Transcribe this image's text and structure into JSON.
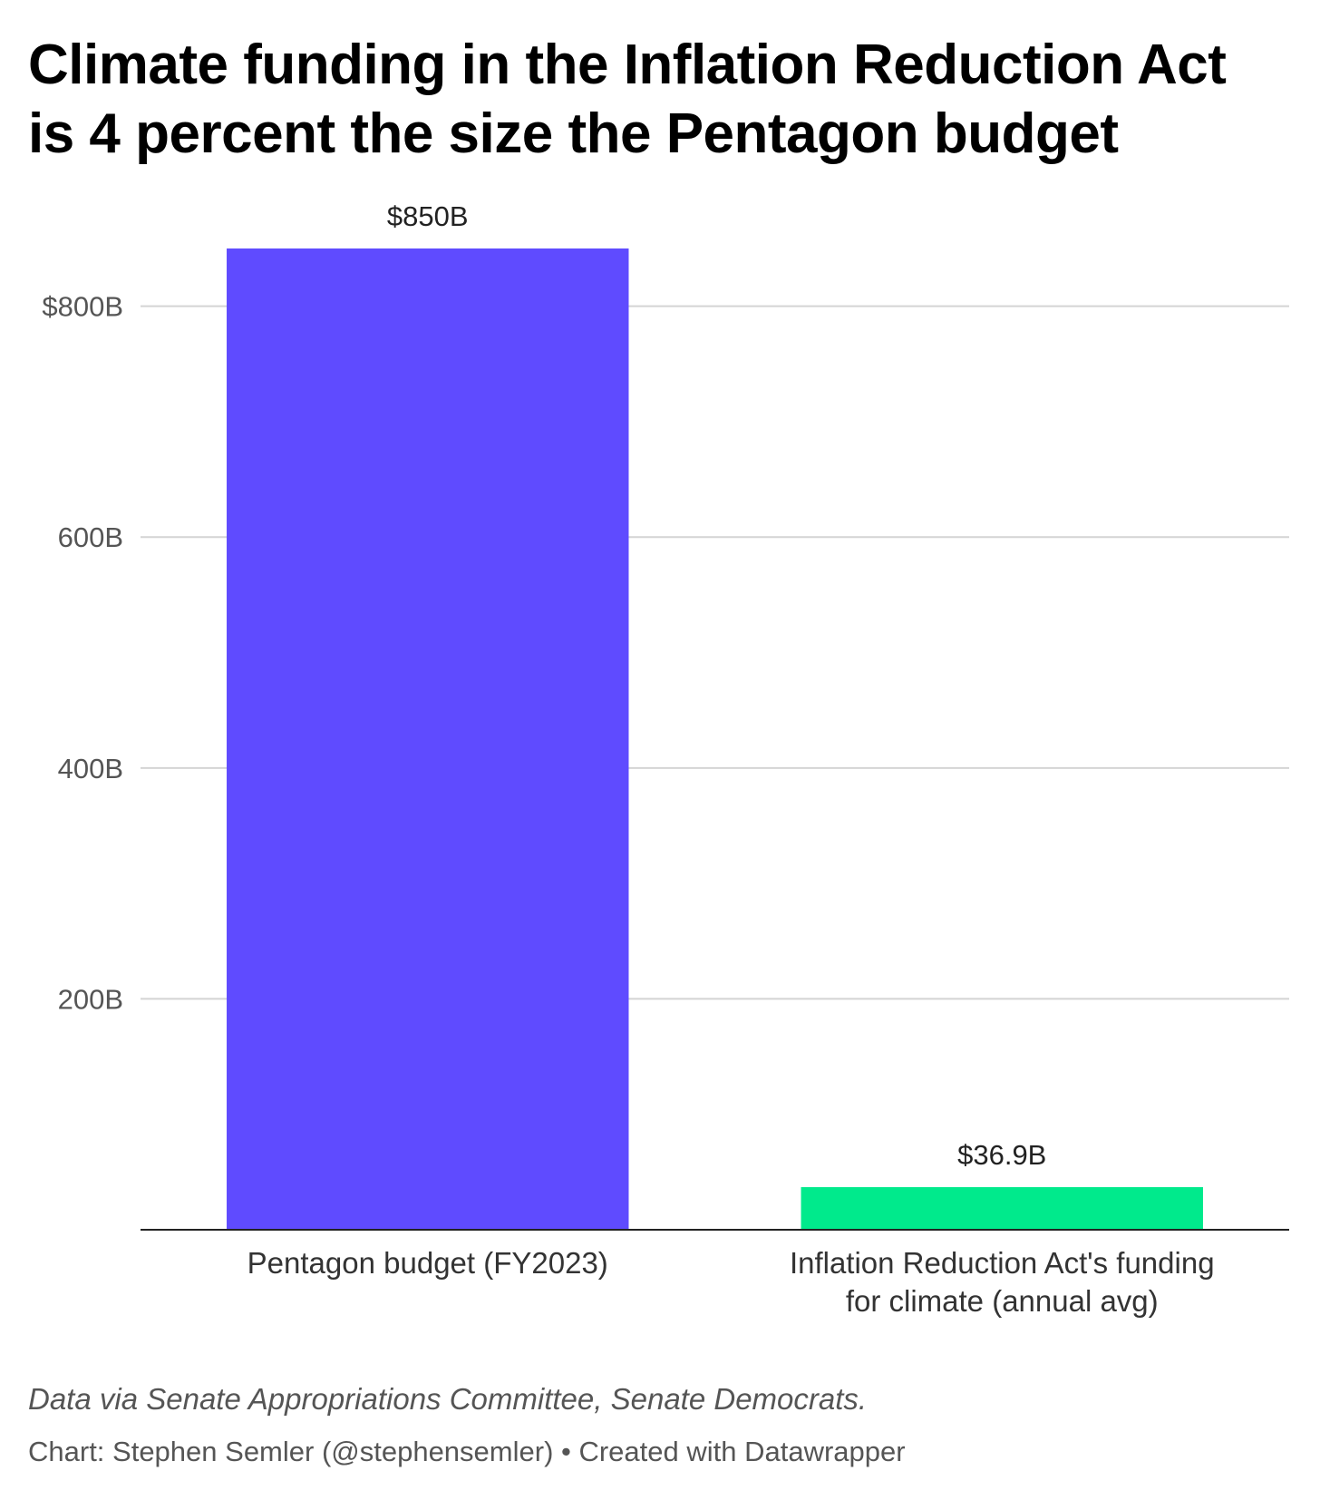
{
  "header": {
    "title_lines": [
      "Climate funding in the Inflation Reduction Act",
      "is 4 percent the size the Pentagon budget"
    ]
  },
  "footer": {
    "notes": "Data via Senate Appropriations Committee, Senate Democrats.",
    "credit": "Chart: Stephen Semler (@stephensemler) • Created with Datawrapper"
  },
  "chart_data": {
    "type": "bar",
    "title": "Climate funding in the Inflation Reduction Act is 4 percent the size the Pentagon budget",
    "categories": [
      [
        "Pentagon budget (FY2023)"
      ],
      [
        "Inflation Reduction Act's funding",
        "for climate (annual avg)"
      ]
    ],
    "values": [
      850,
      36.9
    ],
    "value_labels": [
      "$850B",
      "$36.9B"
    ],
    "bar_colors": [
      "#5f4bff",
      "#00ea8c"
    ],
    "unit": "billion USD",
    "ylim": [
      0,
      850
    ],
    "y_ticks": [
      {
        "value": 200,
        "label": "200B"
      },
      {
        "value": 400,
        "label": "400B"
      },
      {
        "value": 600,
        "label": "600B"
      },
      {
        "value": 800,
        "label": "$800B"
      }
    ],
    "grid": true,
    "xlabel": "",
    "ylabel": "",
    "legend": "none"
  }
}
